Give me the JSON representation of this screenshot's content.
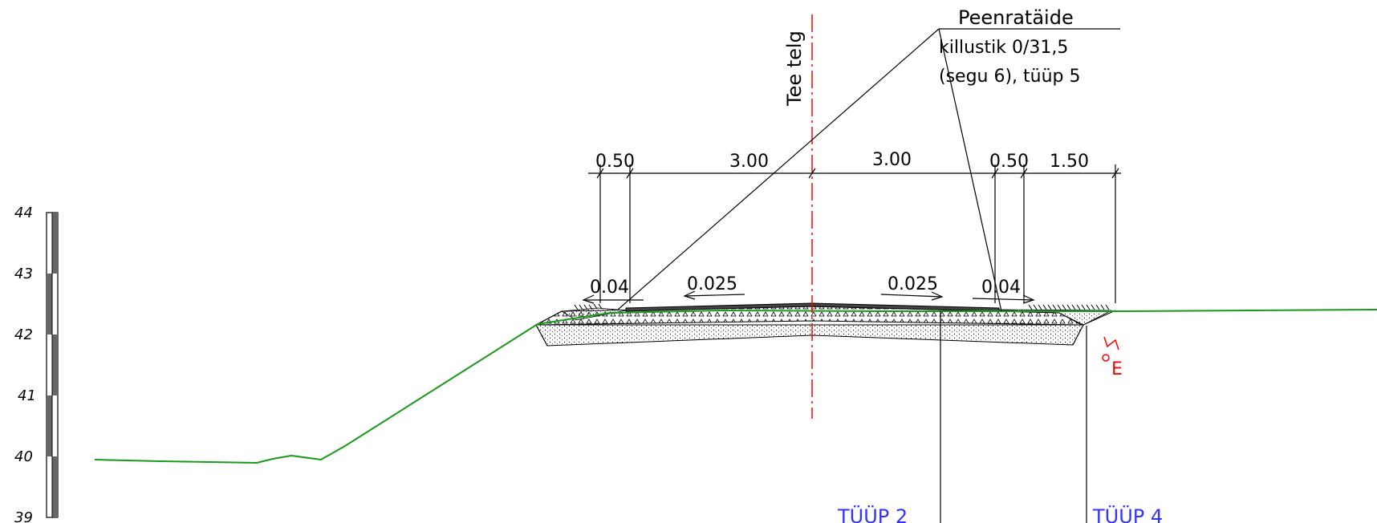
{
  "labels": {
    "axis": "Tee telg",
    "callout_title": "Peenratäide",
    "callout_line1": "killustik 0/31,5",
    "callout_line2": "(segu 6), tüüp 5",
    "drain_symbol": "E"
  },
  "dimensions": [
    "0.50",
    "3.00",
    "3.00",
    "0.50",
    "1.50"
  ],
  "slopes": [
    "0.04",
    "0.025",
    "0.025",
    "0.04"
  ],
  "types": [
    "TÜÜP 2",
    "TÜÜP 4"
  ],
  "elevations": [
    "44",
    "43",
    "42",
    "41",
    "40",
    "39"
  ],
  "colors": {
    "ground": "#1a9a1a",
    "axis": "#ff0000",
    "type_text": "#3333ff",
    "lines": "#000000"
  }
}
